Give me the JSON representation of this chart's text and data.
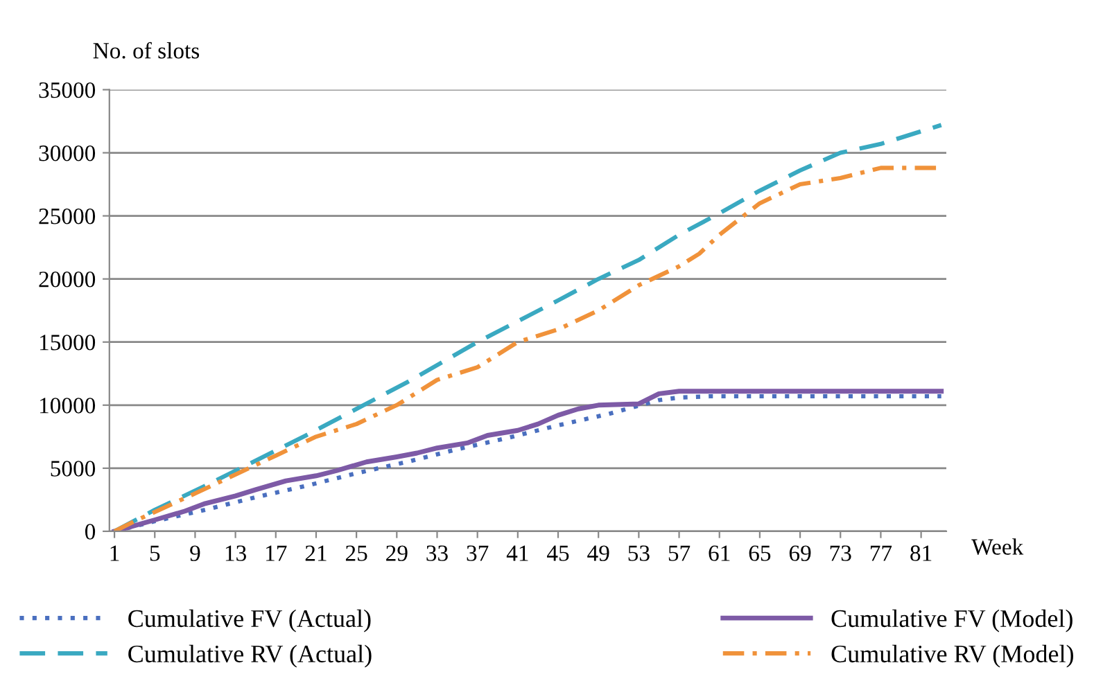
{
  "chart_data": {
    "type": "line",
    "ylabel": "No. of slots",
    "xlabel": "Week",
    "xlim": [
      0.5,
      83.5
    ],
    "xticks": [
      1,
      5,
      9,
      13,
      17,
      21,
      25,
      29,
      33,
      37,
      41,
      45,
      49,
      53,
      57,
      61,
      65,
      69,
      73,
      77,
      81
    ],
    "ylim": [
      0,
      35000
    ],
    "yticks": [
      0,
      5000,
      10000,
      15000,
      20000,
      25000,
      30000,
      35000
    ],
    "grid": "y",
    "legend": "bottom",
    "series": [
      {
        "name": "Cumulative FV (Actual)",
        "color": "#4a6fbf",
        "line_style": "dotted",
        "x": [
          1,
          5,
          10,
          15,
          20,
          25,
          30,
          35,
          40,
          45,
          50,
          55,
          57,
          60,
          65,
          70,
          75,
          80,
          83
        ],
        "values": [
          0,
          800,
          1700,
          2700,
          3600,
          4600,
          5500,
          6500,
          7400,
          8400,
          9300,
          10400,
          10600,
          10700,
          10700,
          10700,
          10700,
          10700,
          10700
        ]
      },
      {
        "name": "Cumulative FV (Model)",
        "color": "#7d5aa6",
        "line_style": "solid",
        "x": [
          1,
          5,
          8,
          10,
          13,
          15,
          18,
          21,
          23,
          26,
          29,
          31,
          33,
          36,
          38,
          41,
          43,
          45,
          47,
          49,
          53,
          55,
          57,
          60,
          65,
          70,
          75,
          80,
          83
        ],
        "values": [
          0,
          900,
          1600,
          2200,
          2800,
          3300,
          4000,
          4400,
          4800,
          5500,
          5900,
          6200,
          6600,
          7000,
          7600,
          8000,
          8500,
          9200,
          9700,
          10000,
          10100,
          10900,
          11100,
          11100,
          11100,
          11100,
          11100,
          11100,
          11100
        ]
      },
      {
        "name": "Cumulative RV (Actual)",
        "color": "#3aa9c1",
        "line_style": "dashed",
        "x": [
          1,
          5,
          10,
          15,
          20,
          25,
          30,
          37,
          45,
          49,
          53,
          57,
          61,
          65,
          69,
          73,
          77,
          83
        ],
        "values": [
          0,
          1700,
          3600,
          5600,
          7600,
          9700,
          11800,
          15000,
          18300,
          20000,
          21500,
          23500,
          25200,
          27000,
          28600,
          30000,
          30700,
          32200
        ]
      },
      {
        "name": "Cumulative RV (Model)",
        "color": "#f0923a",
        "line_style": "dashdot",
        "x": [
          1,
          3,
          9,
          13,
          17,
          21,
          25,
          29,
          33,
          37,
          41,
          45,
          49,
          53,
          57,
          59,
          61,
          65,
          69,
          73,
          77,
          83
        ],
        "values": [
          0,
          800,
          3000,
          4500,
          6000,
          7500,
          8500,
          10000,
          12000,
          13000,
          15000,
          16000,
          17500,
          19500,
          21000,
          22000,
          23500,
          26000,
          27500,
          28000,
          28800,
          28800
        ]
      }
    ]
  }
}
